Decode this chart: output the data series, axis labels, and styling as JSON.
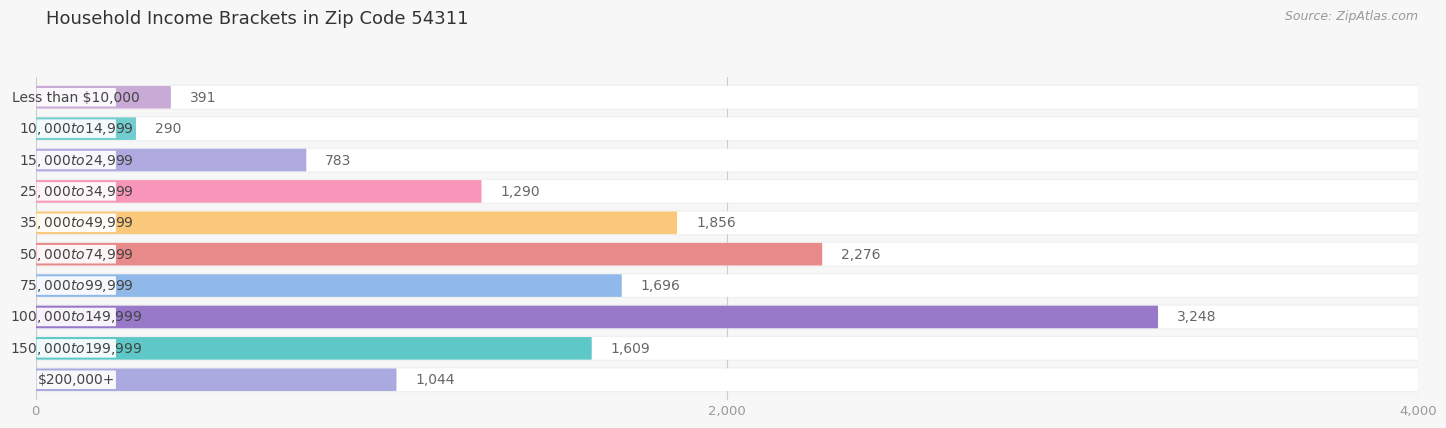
{
  "title": "Household Income Brackets in Zip Code 54311",
  "source": "Source: ZipAtlas.com",
  "categories": [
    "Less than $10,000",
    "$10,000 to $14,999",
    "$15,000 to $24,999",
    "$25,000 to $34,999",
    "$35,000 to $49,999",
    "$50,000 to $74,999",
    "$75,000 to $99,999",
    "$100,000 to $149,999",
    "$150,000 to $199,999",
    "$200,000+"
  ],
  "values": [
    391,
    290,
    783,
    1290,
    1856,
    2276,
    1696,
    3248,
    1609,
    1044
  ],
  "colors": [
    "#c9aad6",
    "#72cece",
    "#aeaae0",
    "#f796b8",
    "#f9c87a",
    "#e88a8a",
    "#90b8e8",
    "#9878c8",
    "#5ec8c8",
    "#aaaae0"
  ],
  "xlim": [
    0,
    4000
  ],
  "xticks": [
    0,
    2000,
    4000
  ],
  "background_color": "#f7f7f7",
  "title_fontsize": 13,
  "label_fontsize": 10,
  "value_fontsize": 10,
  "source_fontsize": 9
}
